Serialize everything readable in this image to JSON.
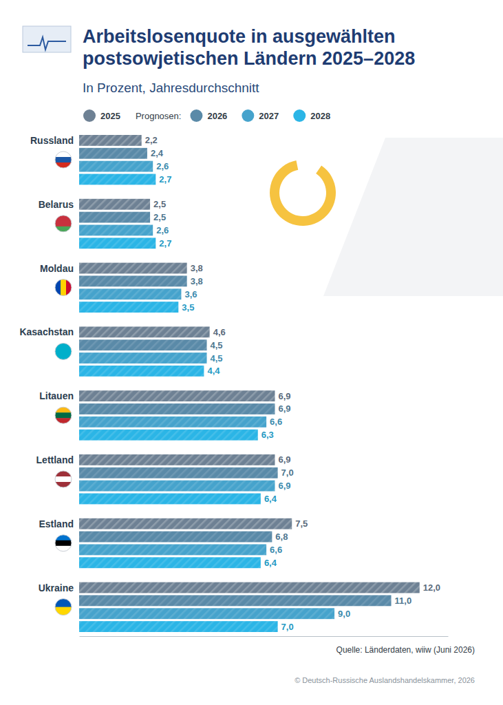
{
  "chart_data": {
    "type": "bar",
    "orientation": "horizontal",
    "title": "Arbeitslosenquote in ausgewählten postsowjetischen Ländern 2025–2028",
    "subtitle": "In Prozent, Jahresdurchschnitt",
    "annotations": [
      "Prognosen:"
    ],
    "source": "Quelle: Länderdaten, wiiw (Juni 2026)",
    "credit": "© Deutsch-Russische Auslandshandelskammer, 2026",
    "categories": [
      "Russland",
      "Belarus",
      "Moldau",
      "Kasachstan",
      "Litauen",
      "Lettland",
      "Estland",
      "Ukraine"
    ],
    "series": [
      {
        "name": "2025",
        "color": "#6e8194",
        "values": [
          2.2,
          2.5,
          3.8,
          4.6,
          6.9,
          6.9,
          7.5,
          12.0
        ],
        "value_labels": [
          "2,2",
          "2,5",
          "3,8",
          "4,6",
          "6,9",
          "6,9",
          "7,5",
          "12,0"
        ]
      },
      {
        "name": "2026",
        "color": "#5a8aa8",
        "values": [
          2.4,
          2.5,
          3.8,
          4.5,
          6.9,
          7.0,
          6.8,
          11.0
        ],
        "value_labels": [
          "2,4",
          "2,5",
          "3,8",
          "4,5",
          "6,9",
          "7,0",
          "6,8",
          "11,0"
        ]
      },
      {
        "name": "2027",
        "color": "#46a3cc",
        "values": [
          2.6,
          2.6,
          3.6,
          4.5,
          6.6,
          6.9,
          6.6,
          9.0
        ],
        "value_labels": [
          "2,6",
          "2,6",
          "3,6",
          "4,5",
          "6,6",
          "6,9",
          "6,6",
          "9,0"
        ]
      },
      {
        "name": "2028",
        "color": "#2bb5e6",
        "values": [
          2.7,
          2.7,
          3.5,
          4.4,
          6.3,
          6.4,
          6.4,
          7.0
        ],
        "value_labels": [
          "2,7",
          "2,7",
          "3,5",
          "4,4",
          "6,3",
          "6,4",
          "6,4",
          "7,0"
        ]
      }
    ],
    "xlim": [
      0,
      13
    ],
    "tick_labels": false,
    "grid": false,
    "legend": "top",
    "data_labels": true
  }
}
